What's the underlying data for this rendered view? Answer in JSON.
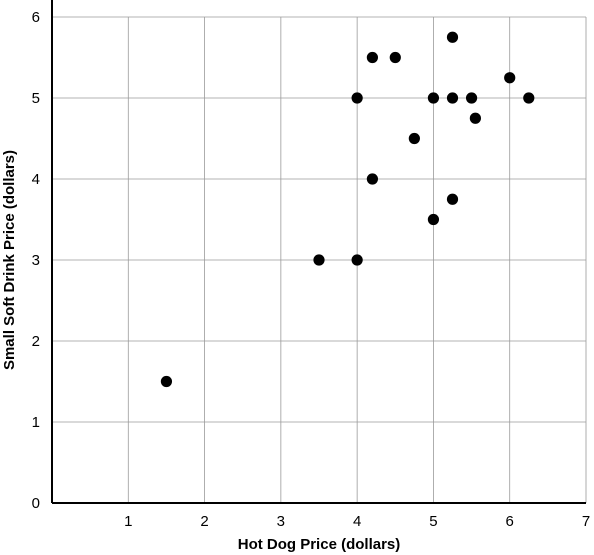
{
  "chart_data": {
    "type": "scatter",
    "title": "",
    "xlabel": "Hot Dog Price (dollars)",
    "ylabel": "Small Soft Drink Price (dollars)",
    "xlim": [
      0,
      7
    ],
    "ylim": [
      0,
      6
    ],
    "x_ticks": [
      "1",
      "2",
      "3",
      "4",
      "5",
      "6",
      "7"
    ],
    "y_ticks": [
      "0",
      "1",
      "2",
      "3",
      "4",
      "5",
      "6"
    ],
    "grid": true,
    "point_color": "#000000",
    "points": [
      {
        "x": 1.5,
        "y": 1.5
      },
      {
        "x": 3.5,
        "y": 3.0
      },
      {
        "x": 4.0,
        "y": 3.0
      },
      {
        "x": 4.0,
        "y": 5.0
      },
      {
        "x": 4.2,
        "y": 4.0
      },
      {
        "x": 4.2,
        "y": 5.5
      },
      {
        "x": 4.5,
        "y": 5.5
      },
      {
        "x": 4.75,
        "y": 4.5
      },
      {
        "x": 5.0,
        "y": 3.5
      },
      {
        "x": 5.0,
        "y": 5.0
      },
      {
        "x": 5.25,
        "y": 3.75
      },
      {
        "x": 5.25,
        "y": 5.0
      },
      {
        "x": 5.25,
        "y": 5.75
      },
      {
        "x": 5.5,
        "y": 5.0
      },
      {
        "x": 5.55,
        "y": 4.75
      },
      {
        "x": 6.0,
        "y": 5.25
      },
      {
        "x": 6.25,
        "y": 5.0
      }
    ]
  }
}
